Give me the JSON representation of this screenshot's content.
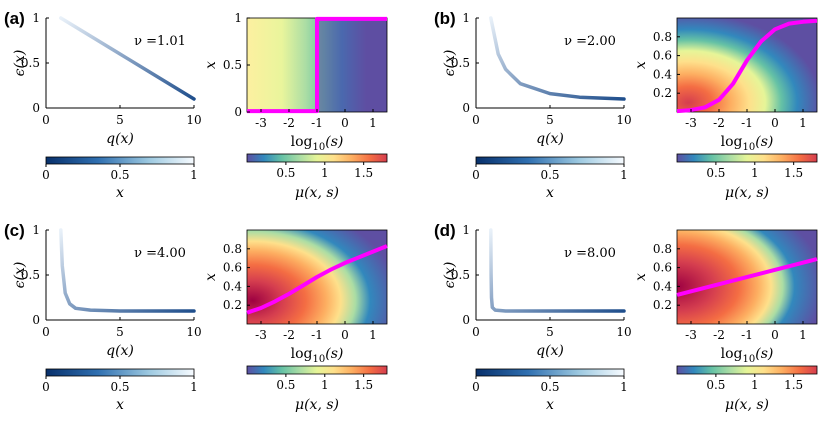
{
  "figure": {
    "panels": [
      {
        "label": "(a)",
        "nu_text": "ν =1.01",
        "nu": 1.01,
        "boundary": "step"
      },
      {
        "label": "(b)",
        "nu_text": "ν =2.00",
        "nu": 2.0,
        "boundary": "sigmoid"
      },
      {
        "label": "(c)",
        "nu_text": "ν =4.00",
        "nu": 4.0,
        "boundary": "gentle"
      },
      {
        "label": "(d)",
        "nu_text": "ν =8.00",
        "nu": 8.0,
        "boundary": "linear"
      }
    ]
  },
  "chart_data": [
    {
      "panel": "(a)",
      "chart": "curve",
      "type": "line",
      "xlabel": "q(x)",
      "ylabel": "ϵ(x)",
      "xlim": [
        0,
        10
      ],
      "ylim": [
        0,
        1
      ],
      "xticks": [
        "0",
        "5",
        "10"
      ],
      "yticks": [
        "0",
        "0.5",
        "1"
      ],
      "series": [
        {
          "x": [
            1,
            3,
            5,
            7,
            10
          ],
          "y": [
            1.0,
            0.8,
            0.6,
            0.4,
            0.1
          ]
        }
      ]
    },
    {
      "panel": "(a)",
      "chart": "heatmap",
      "type": "heatmap",
      "xlabel": "log10(s)",
      "ylabel": "x",
      "xlim": [
        -3.5,
        1.5
      ],
      "ylim": [
        0,
        1
      ],
      "xticks": [
        "-3",
        "-2",
        "-1",
        "0",
        "1"
      ],
      "yticks": [
        "0",
        "0.5",
        "1"
      ],
      "boundary": {
        "x": [
          -3.5,
          -1.0,
          -1.0,
          1.5
        ],
        "y": [
          0.01,
          0.01,
          0.99,
          0.99
        ]
      }
    },
    {
      "panel": "(b)",
      "chart": "curve",
      "type": "line",
      "xlabel": "q(x)",
      "ylabel": "ϵ(x)",
      "xlim": [
        0,
        10
      ],
      "ylim": [
        0,
        1
      ],
      "xticks": [
        "0",
        "5",
        "10"
      ],
      "yticks": [
        "0",
        "0.5",
        "1"
      ],
      "series": [
        {
          "x": [
            1,
            1.5,
            2,
            3,
            5,
            7,
            10
          ],
          "y": [
            1.0,
            0.6,
            0.43,
            0.27,
            0.16,
            0.12,
            0.1
          ]
        }
      ]
    },
    {
      "panel": "(b)",
      "chart": "heatmap",
      "type": "heatmap",
      "xlabel": "log10(s)",
      "ylabel": "x",
      "xlim": [
        -3.5,
        1.5
      ],
      "ylim": [
        0,
        1
      ],
      "xticks": [
        "-3",
        "-2",
        "-1",
        "0",
        "1"
      ],
      "yticks": [
        "0.2",
        "0.4",
        "0.6",
        "0.8"
      ],
      "boundary": {
        "x": [
          -3.5,
          -3,
          -2.5,
          -2,
          -1.5,
          -1,
          -0.5,
          0,
          0.5,
          1,
          1.5
        ],
        "y": [
          0.01,
          0.02,
          0.05,
          0.13,
          0.3,
          0.55,
          0.75,
          0.88,
          0.94,
          0.96,
          0.97
        ]
      }
    },
    {
      "panel": "(c)",
      "chart": "curve",
      "type": "line",
      "xlabel": "q(x)",
      "ylabel": "ϵ(x)",
      "xlim": [
        0,
        10
      ],
      "ylim": [
        0,
        1
      ],
      "xticks": [
        "0",
        "5",
        "10"
      ],
      "yticks": [
        "0",
        "0.5",
        "1"
      ],
      "series": [
        {
          "x": [
            1,
            1.1,
            1.3,
            1.6,
            2,
            3,
            5,
            10
          ],
          "y": [
            1.0,
            0.6,
            0.3,
            0.18,
            0.13,
            0.11,
            0.1,
            0.1
          ]
        }
      ]
    },
    {
      "panel": "(c)",
      "chart": "heatmap",
      "type": "heatmap",
      "xlabel": "log10(s)",
      "ylabel": "x",
      "xlim": [
        -3.5,
        1.5
      ],
      "ylim": [
        0,
        1
      ],
      "xticks": [
        "-3",
        "-2",
        "-1",
        "0",
        "1"
      ],
      "yticks": [
        "0.2",
        "0.4",
        "0.6",
        "0.8"
      ],
      "boundary": {
        "x": [
          -3.5,
          -3,
          -2.5,
          -2,
          -1.5,
          -1,
          -0.5,
          0,
          0.5,
          1,
          1.5
        ],
        "y": [
          0.12,
          0.17,
          0.24,
          0.32,
          0.41,
          0.5,
          0.58,
          0.65,
          0.71,
          0.77,
          0.83
        ]
      }
    },
    {
      "panel": "(d)",
      "chart": "curve",
      "type": "line",
      "xlabel": "q(x)",
      "ylabel": "ϵ(x)",
      "xlim": [
        0,
        10
      ],
      "ylim": [
        0,
        1
      ],
      "xticks": [
        "0",
        "5",
        "10"
      ],
      "yticks": [
        "0",
        "0.5",
        "1"
      ],
      "series": [
        {
          "x": [
            1,
            1.02,
            1.05,
            1.1,
            1.3,
            2,
            5,
            10
          ],
          "y": [
            1.0,
            0.5,
            0.25,
            0.14,
            0.11,
            0.1,
            0.1,
            0.1
          ]
        }
      ]
    },
    {
      "panel": "(d)",
      "chart": "heatmap",
      "type": "heatmap",
      "xlabel": "log10(s)",
      "ylabel": "x",
      "xlim": [
        -3.5,
        1.5
      ],
      "ylim": [
        0,
        1
      ],
      "xticks": [
        "-3",
        "-2",
        "-1",
        "0",
        "1"
      ],
      "yticks": [
        "0.2",
        "0.4",
        "0.6",
        "0.8"
      ],
      "boundary": {
        "x": [
          -3.5,
          1.5
        ],
        "y": [
          0.31,
          0.69
        ]
      }
    }
  ],
  "colorbars": {
    "x_bar": {
      "label": "x",
      "ticks": [
        "0",
        "0.5",
        "1"
      ],
      "range": [
        0,
        1
      ]
    },
    "mu_bar": {
      "label": "μ(x, s)",
      "ticks": [
        "0.5",
        "1",
        "1.5"
      ],
      "range": [
        0,
        1.8
      ]
    }
  },
  "colors": {
    "boundary": "#ff00ff",
    "curve_dark": "#1f4e8c",
    "curve_light": "#e9f1f9"
  }
}
